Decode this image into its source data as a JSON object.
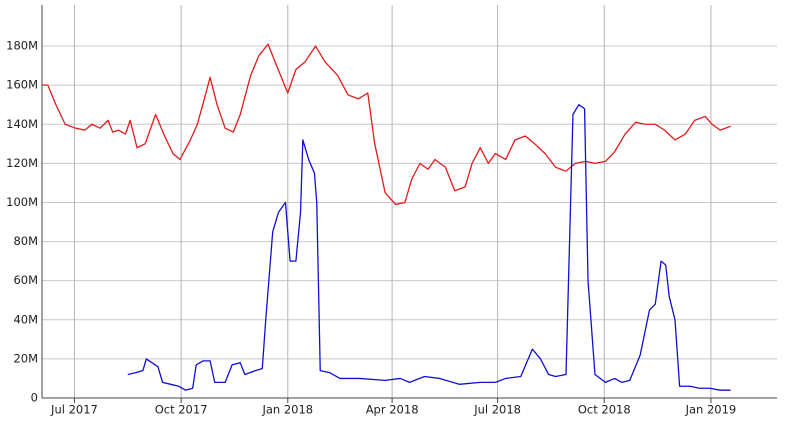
{
  "chart_data": {
    "type": "line",
    "xlim": [
      "2017-06-03",
      "2019-02-27"
    ],
    "xticks": [
      {
        "value": "2017-07-01",
        "label": "Jul 2017"
      },
      {
        "value": "2017-10-01",
        "label": "Oct 2017"
      },
      {
        "value": "2018-01-01",
        "label": "Jan 2018"
      },
      {
        "value": "2018-04-01",
        "label": "Apr 2018"
      },
      {
        "value": "2018-07-01",
        "label": "Jul 2018"
      },
      {
        "value": "2018-10-01",
        "label": "Oct 2018"
      },
      {
        "value": "2019-01-01",
        "label": "Jan 2019"
      }
    ],
    "ylim": [
      0,
      201
    ],
    "yticks": [
      0,
      {
        "value": 20,
        "label": "20M"
      },
      {
        "value": 40,
        "label": "40M"
      },
      {
        "value": 60,
        "label": "60M"
      },
      {
        "value": 80,
        "label": "80M"
      },
      {
        "value": 100,
        "label": "100M"
      },
      {
        "value": 120,
        "label": "120M"
      },
      {
        "value": 140,
        "label": "140M"
      },
      {
        "value": 160,
        "label": "160M"
      },
      {
        "value": 180,
        "label": "180M"
      }
    ],
    "grid": true,
    "series": [
      {
        "color": "#e31a1c",
        "x": [
          "2017-06-03",
          "2017-06-08",
          "2017-06-15",
          "2017-06-23",
          "2017-07-02",
          "2017-07-10",
          "2017-07-16",
          "2017-07-23",
          "2017-07-30",
          "2017-08-03",
          "2017-08-08",
          "2017-08-14",
          "2017-08-18",
          "2017-08-24",
          "2017-08-31",
          "2017-09-09",
          "2017-09-16",
          "2017-09-24",
          "2017-09-30",
          "2017-10-09",
          "2017-10-15",
          "2017-10-22",
          "2017-10-26",
          "2017-11-01",
          "2017-11-08",
          "2017-11-15",
          "2017-11-21",
          "2017-11-30",
          "2017-12-07",
          "2017-12-15",
          "2017-12-21",
          "2018-01-01",
          "2018-01-08",
          "2018-01-16",
          "2018-01-25",
          "2018-02-02",
          "2018-02-13",
          "2018-02-22",
          "2018-03-03",
          "2018-03-11",
          "2018-03-17",
          "2018-03-26",
          "2018-04-04",
          "2018-04-12",
          "2018-04-18",
          "2018-04-25",
          "2018-05-02",
          "2018-05-08",
          "2018-05-17",
          "2018-05-25",
          "2018-06-03",
          "2018-06-09",
          "2018-06-16",
          "2018-06-23",
          "2018-06-29",
          "2018-07-08",
          "2018-07-16",
          "2018-07-25",
          "2018-08-02",
          "2018-08-11",
          "2018-08-20",
          "2018-08-29",
          "2018-09-06",
          "2018-09-15",
          "2018-09-23",
          "2018-10-02",
          "2018-10-10",
          "2018-10-19",
          "2018-10-28",
          "2018-11-05",
          "2018-11-14",
          "2018-11-22",
          "2018-12-01",
          "2018-12-10",
          "2018-12-18",
          "2018-12-27",
          "2019-01-02",
          "2019-01-09",
          "2019-01-18"
        ],
        "values": [
          160,
          160,
          150,
          140,
          138,
          137,
          140,
          138,
          142,
          136,
          137,
          135,
          142,
          128,
          130,
          145,
          135,
          125,
          122,
          132,
          140,
          155,
          164,
          150,
          138,
          136,
          145,
          165,
          175,
          181,
          172,
          156,
          168,
          172,
          180,
          172,
          165,
          155,
          153,
          156,
          130,
          105,
          99,
          100,
          112,
          120,
          117,
          122,
          118,
          106,
          108,
          120,
          128,
          120,
          125,
          122,
          132,
          134,
          130,
          125,
          118,
          116,
          120,
          121,
          120,
          121,
          126,
          135,
          141,
          140,
          140,
          137,
          132,
          135,
          142,
          144,
          140,
          137,
          139
        ]
      },
      {
        "color": "#1010d0",
        "x": [
          "2017-08-16",
          "2017-08-23",
          "2017-08-29",
          "2017-09-01",
          "2017-09-06",
          "2017-09-11",
          "2017-09-15",
          "2017-09-22",
          "2017-09-29",
          "2017-10-05",
          "2017-10-11",
          "2017-10-14",
          "2017-10-20",
          "2017-10-26",
          "2017-10-30",
          "2017-11-08",
          "2017-11-14",
          "2017-11-21",
          "2017-11-25",
          "2017-12-04",
          "2017-12-10",
          "2017-12-13",
          "2017-12-19",
          "2017-12-24",
          "2017-12-30",
          "2018-01-03",
          "2018-01-08",
          "2018-01-12",
          "2018-01-14",
          "2018-01-19",
          "2018-01-24",
          "2018-01-26",
          "2018-01-29",
          "2018-02-06",
          "2018-02-15",
          "2018-03-04",
          "2018-03-26",
          "2018-04-08",
          "2018-04-16",
          "2018-04-29",
          "2018-05-12",
          "2018-05-29",
          "2018-06-16",
          "2018-06-29",
          "2018-07-08",
          "2018-07-21",
          "2018-07-31",
          "2018-08-07",
          "2018-08-14",
          "2018-08-20",
          "2018-08-29",
          "2018-09-04",
          "2018-09-09",
          "2018-09-14",
          "2018-09-17",
          "2018-09-23",
          "2018-10-02",
          "2018-10-10",
          "2018-10-16",
          "2018-10-23",
          "2018-11-01",
          "2018-11-09",
          "2018-11-14",
          "2018-11-19",
          "2018-11-23",
          "2018-11-26",
          "2018-12-01",
          "2018-12-05",
          "2018-12-14",
          "2018-12-22",
          "2018-12-31",
          "2019-01-09",
          "2019-01-18"
        ],
        "values": [
          12,
          13,
          14,
          20,
          18,
          16,
          8,
          7,
          6,
          4,
          5,
          17,
          19,
          19,
          8,
          8,
          17,
          18,
          12,
          14,
          15,
          40,
          85,
          95,
          100,
          70,
          70,
          95,
          132,
          122,
          115,
          100,
          14,
          13,
          10,
          10,
          9,
          10,
          8,
          11,
          10,
          7,
          8,
          8,
          10,
          11,
          25,
          20,
          12,
          11,
          12,
          145,
          150,
          148,
          60,
          12,
          8,
          10,
          8,
          9,
          22,
          45,
          48,
          70,
          68,
          52,
          40,
          6,
          6,
          5,
          5,
          4,
          4
        ]
      }
    ]
  }
}
